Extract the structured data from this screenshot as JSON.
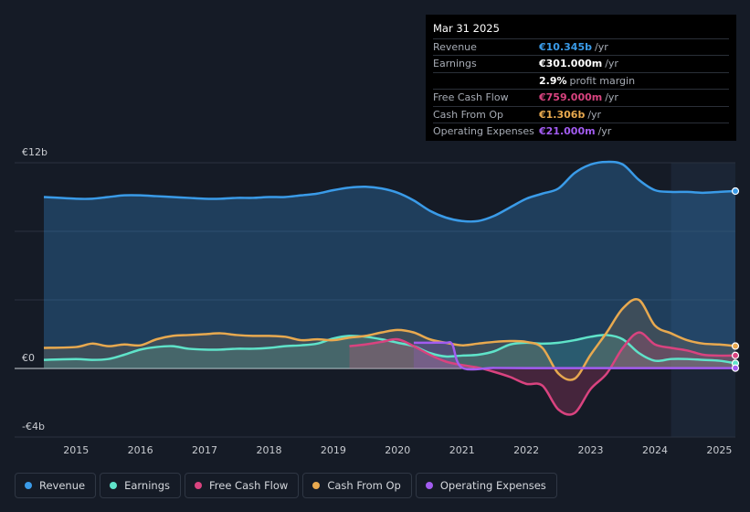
{
  "tooltip": {
    "date": "Mar 31 2025",
    "rows": [
      {
        "label": "Revenue",
        "value": "€10.345b",
        "unit": "/yr",
        "color": "#3a9be8"
      },
      {
        "label": "Earnings",
        "value": "€301.000m",
        "unit": "/yr",
        "color": "#ffffff"
      },
      {
        "label": "",
        "value": "2.9%",
        "unit": "profit margin",
        "color": "#ffffff"
      },
      {
        "label": "Free Cash Flow",
        "value": "€759.000m",
        "unit": "/yr",
        "color": "#d9437f"
      },
      {
        "label": "Cash From Op",
        "value": "€1.306b",
        "unit": "/yr",
        "color": "#e8a94f"
      },
      {
        "label": "Operating Expenses",
        "value": "€21.000m",
        "unit": "/yr",
        "color": "#a25cf0"
      }
    ]
  },
  "chart_data": {
    "type": "area",
    "title": "",
    "xlabel": "",
    "ylabel": "",
    "ylim": [
      -4,
      12
    ],
    "y_tick_labels": [
      {
        "value": 12,
        "label": "€12b"
      },
      {
        "value": 0,
        "label": "€0"
      },
      {
        "value": -4,
        "label": "-€4b"
      }
    ],
    "x_ticks": [
      2015,
      2016,
      2017,
      2018,
      2019,
      2020,
      2021,
      2022,
      2023,
      2024,
      2025
    ],
    "x_tick_labels": [
      "2015",
      "2016",
      "2017",
      "2018",
      "2019",
      "2020",
      "2021",
      "2022",
      "2023",
      "2024",
      "2025"
    ],
    "xlim": [
      2014.0,
      2025.25
    ],
    "forecast_start": 2024.25,
    "series": [
      {
        "name": "Revenue",
        "color": "#3a9be8",
        "x": [
          2014.5,
          2015.0,
          2015.25,
          2015.5,
          2015.75,
          2016.0,
          2016.25,
          2016.5,
          2016.75,
          2017.0,
          2017.25,
          2017.5,
          2017.75,
          2018.0,
          2018.25,
          2018.5,
          2018.75,
          2019.0,
          2019.25,
          2019.5,
          2019.75,
          2020.0,
          2020.25,
          2020.5,
          2020.75,
          2021.0,
          2021.25,
          2021.5,
          2021.75,
          2022.0,
          2022.25,
          2022.5,
          2022.75,
          2023.0,
          2023.25,
          2023.5,
          2023.75,
          2024.0,
          2024.25,
          2024.5,
          2024.75,
          2025.0,
          2025.25
        ],
        "values": [
          10.0,
          9.9,
          9.9,
          10.0,
          10.1,
          10.1,
          10.05,
          10.0,
          9.95,
          9.9,
          9.9,
          9.95,
          9.95,
          10.0,
          10.0,
          10.1,
          10.2,
          10.4,
          10.55,
          10.6,
          10.5,
          10.25,
          9.8,
          9.2,
          8.8,
          8.6,
          8.6,
          8.9,
          9.4,
          9.9,
          10.2,
          10.5,
          11.4,
          11.9,
          12.05,
          11.9,
          11.0,
          10.4,
          10.3,
          10.3,
          10.25,
          10.3,
          10.345
        ]
      },
      {
        "name": "Earnings",
        "color": "#5fe3c9",
        "x": [
          2014.5,
          2015.0,
          2015.25,
          2015.5,
          2015.75,
          2016.0,
          2016.25,
          2016.5,
          2016.75,
          2017.0,
          2017.25,
          2017.5,
          2017.75,
          2018.0,
          2018.25,
          2018.5,
          2018.75,
          2019.0,
          2019.25,
          2019.5,
          2019.75,
          2020.0,
          2020.25,
          2020.5,
          2020.75,
          2021.0,
          2021.25,
          2021.5,
          2021.75,
          2022.0,
          2022.25,
          2022.5,
          2022.75,
          2023.0,
          2023.25,
          2023.5,
          2023.75,
          2024.0,
          2024.25,
          2024.5,
          2024.75,
          2025.0,
          2025.25
        ],
        "values": [
          0.5,
          0.55,
          0.5,
          0.55,
          0.8,
          1.1,
          1.25,
          1.3,
          1.15,
          1.1,
          1.1,
          1.15,
          1.15,
          1.2,
          1.3,
          1.35,
          1.45,
          1.75,
          1.9,
          1.85,
          1.7,
          1.5,
          1.3,
          0.9,
          0.7,
          0.75,
          0.8,
          1.0,
          1.4,
          1.5,
          1.45,
          1.5,
          1.65,
          1.85,
          1.95,
          1.7,
          0.9,
          0.45,
          0.55,
          0.55,
          0.5,
          0.45,
          0.301
        ]
      },
      {
        "name": "Free Cash Flow",
        "color": "#d9437f",
        "x": [
          2019.25,
          2019.5,
          2019.75,
          2020.0,
          2020.25,
          2020.5,
          2020.75,
          2021.0,
          2021.25,
          2021.5,
          2021.75,
          2022.0,
          2022.25,
          2022.5,
          2022.75,
          2023.0,
          2023.25,
          2023.5,
          2023.75,
          2024.0,
          2024.25,
          2024.5,
          2024.75,
          2025.0,
          2025.25
        ],
        "values": [
          1.3,
          1.4,
          1.55,
          1.7,
          1.3,
          0.8,
          0.4,
          0.2,
          0.05,
          -0.2,
          -0.5,
          -0.9,
          -1.0,
          -2.4,
          -2.6,
          -1.2,
          -0.3,
          1.2,
          2.1,
          1.4,
          1.2,
          1.05,
          0.8,
          0.75,
          0.759
        ]
      },
      {
        "name": "Cash From Op",
        "color": "#e8a94f",
        "x": [
          2014.5,
          2015.0,
          2015.25,
          2015.5,
          2015.75,
          2016.0,
          2016.25,
          2016.5,
          2016.75,
          2017.0,
          2017.25,
          2017.5,
          2017.75,
          2018.0,
          2018.25,
          2018.5,
          2018.75,
          2019.0,
          2019.25,
          2019.5,
          2019.75,
          2020.0,
          2020.25,
          2020.5,
          2020.75,
          2021.0,
          2021.25,
          2021.5,
          2021.75,
          2022.0,
          2022.25,
          2022.5,
          2022.75,
          2023.0,
          2023.25,
          2023.5,
          2023.75,
          2024.0,
          2024.25,
          2024.5,
          2024.75,
          2025.0,
          2025.25
        ],
        "values": [
          1.2,
          1.25,
          1.45,
          1.3,
          1.4,
          1.35,
          1.7,
          1.9,
          1.95,
          2.0,
          2.05,
          1.95,
          1.9,
          1.9,
          1.85,
          1.65,
          1.7,
          1.65,
          1.8,
          1.9,
          2.1,
          2.25,
          2.1,
          1.7,
          1.5,
          1.35,
          1.45,
          1.55,
          1.6,
          1.55,
          1.2,
          -0.3,
          -0.6,
          0.8,
          2.1,
          3.5,
          4.0,
          2.5,
          2.05,
          1.65,
          1.45,
          1.4,
          1.306
        ]
      },
      {
        "name": "Operating Expenses",
        "color": "#a25cf0",
        "x": [
          2020.25,
          2020.5,
          2020.75,
          2020.85,
          2021.0,
          2021.5,
          2022.0,
          2022.5,
          2023.0,
          2023.5,
          2024.0,
          2024.5,
          2025.0,
          2025.25
        ],
        "values": [
          1.5,
          1.5,
          1.5,
          1.4,
          0.05,
          0.03,
          0.02,
          0.02,
          0.02,
          0.02,
          0.021,
          0.021,
          0.021,
          0.021
        ]
      }
    ]
  },
  "legend": [
    {
      "name": "Revenue",
      "color": "#3a9be8"
    },
    {
      "name": "Earnings",
      "color": "#5fe3c9"
    },
    {
      "name": "Free Cash Flow",
      "color": "#d9437f"
    },
    {
      "name": "Cash From Op",
      "color": "#e8a94f"
    },
    {
      "name": "Operating Expenses",
      "color": "#a25cf0"
    }
  ]
}
